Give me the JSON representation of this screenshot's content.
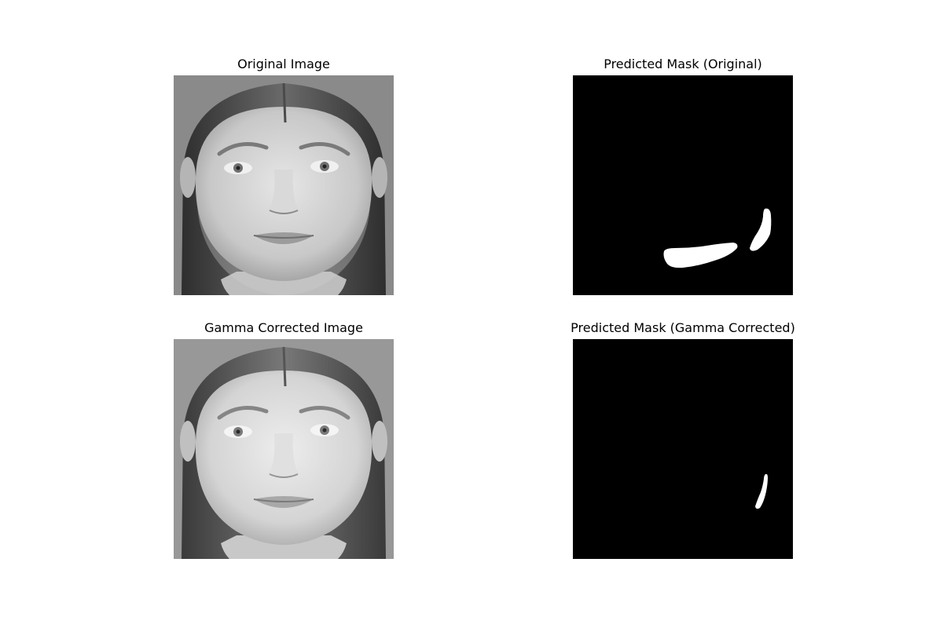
{
  "figure": {
    "panels": [
      {
        "title": "Original Image",
        "kind": "photo",
        "variant": "original"
      },
      {
        "title": "Predicted Mask (Original)",
        "kind": "mask",
        "variant": "original"
      },
      {
        "title": "Gamma Corrected Image",
        "kind": "photo",
        "variant": "gamma"
      },
      {
        "title": "Predicted Mask (Gamma Corrected)",
        "kind": "mask",
        "variant": "gamma"
      }
    ]
  },
  "colors": {
    "figure_background": "#ffffff",
    "mask_background": "#000000",
    "mask_foreground": "#ffffff"
  }
}
